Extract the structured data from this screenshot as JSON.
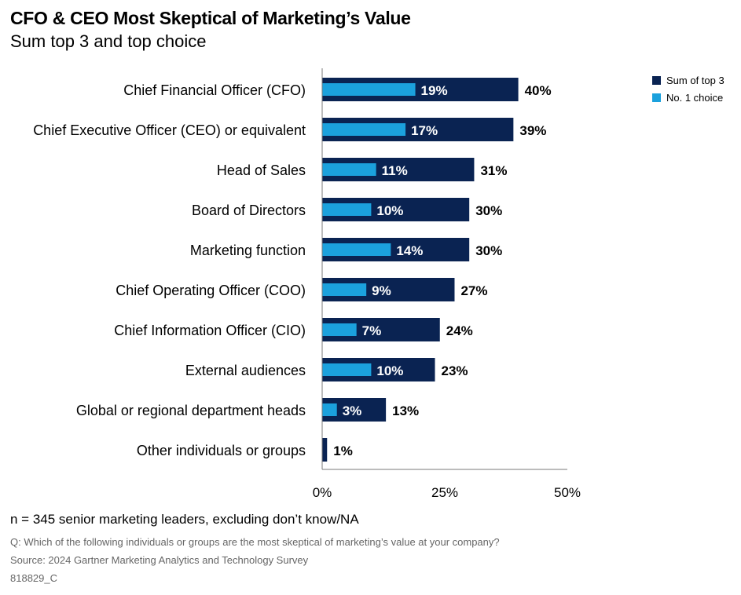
{
  "chart_data": {
    "type": "bar",
    "orientation": "horizontal",
    "title": "CFO & CEO Most Skeptical of Marketing’s Value",
    "subtitle": "Sum top 3 and top choice",
    "categories": [
      "Chief Financial Officer (CFO)",
      "Chief Executive Officer (CEO) or equivalent",
      "Head of Sales",
      "Board of Directors",
      "Marketing function",
      "Chief Operating Officer (COO)",
      "Chief Information Officer (CIO)",
      "External audiences",
      "Global or regional department heads",
      "Other individuals or groups"
    ],
    "series": [
      {
        "name": "Sum of top 3",
        "color": "#0a2352",
        "values": [
          40,
          39,
          31,
          30,
          30,
          27,
          24,
          23,
          13,
          1
        ],
        "labels": [
          "40%",
          "39%",
          "31%",
          "30%",
          "30%",
          "27%",
          "24%",
          "23%",
          "13%",
          "1%"
        ]
      },
      {
        "name": "No. 1 choice",
        "color": "#1ba1dd",
        "values": [
          19,
          17,
          11,
          10,
          14,
          9,
          7,
          10,
          3,
          null
        ],
        "labels": [
          "19%",
          "17%",
          "11%",
          "10%",
          "14%",
          "9%",
          "7%",
          "10%",
          "3%",
          ""
        ]
      }
    ],
    "xlim": [
      0,
      50
    ],
    "xticks": [
      0,
      25,
      50
    ],
    "xtick_labels": [
      "0%",
      "25%",
      "50%"
    ],
    "legend_position": "top-right"
  },
  "footnotes": {
    "sample": "n = 345 senior marketing leaders, excluding don’t know/NA",
    "question": "Q: Which of the following individuals or groups are the most skeptical of marketing’s value at your company?",
    "source": "Source: 2024 Gartner Marketing Analytics and Technology Survey",
    "code": "818829_C"
  }
}
